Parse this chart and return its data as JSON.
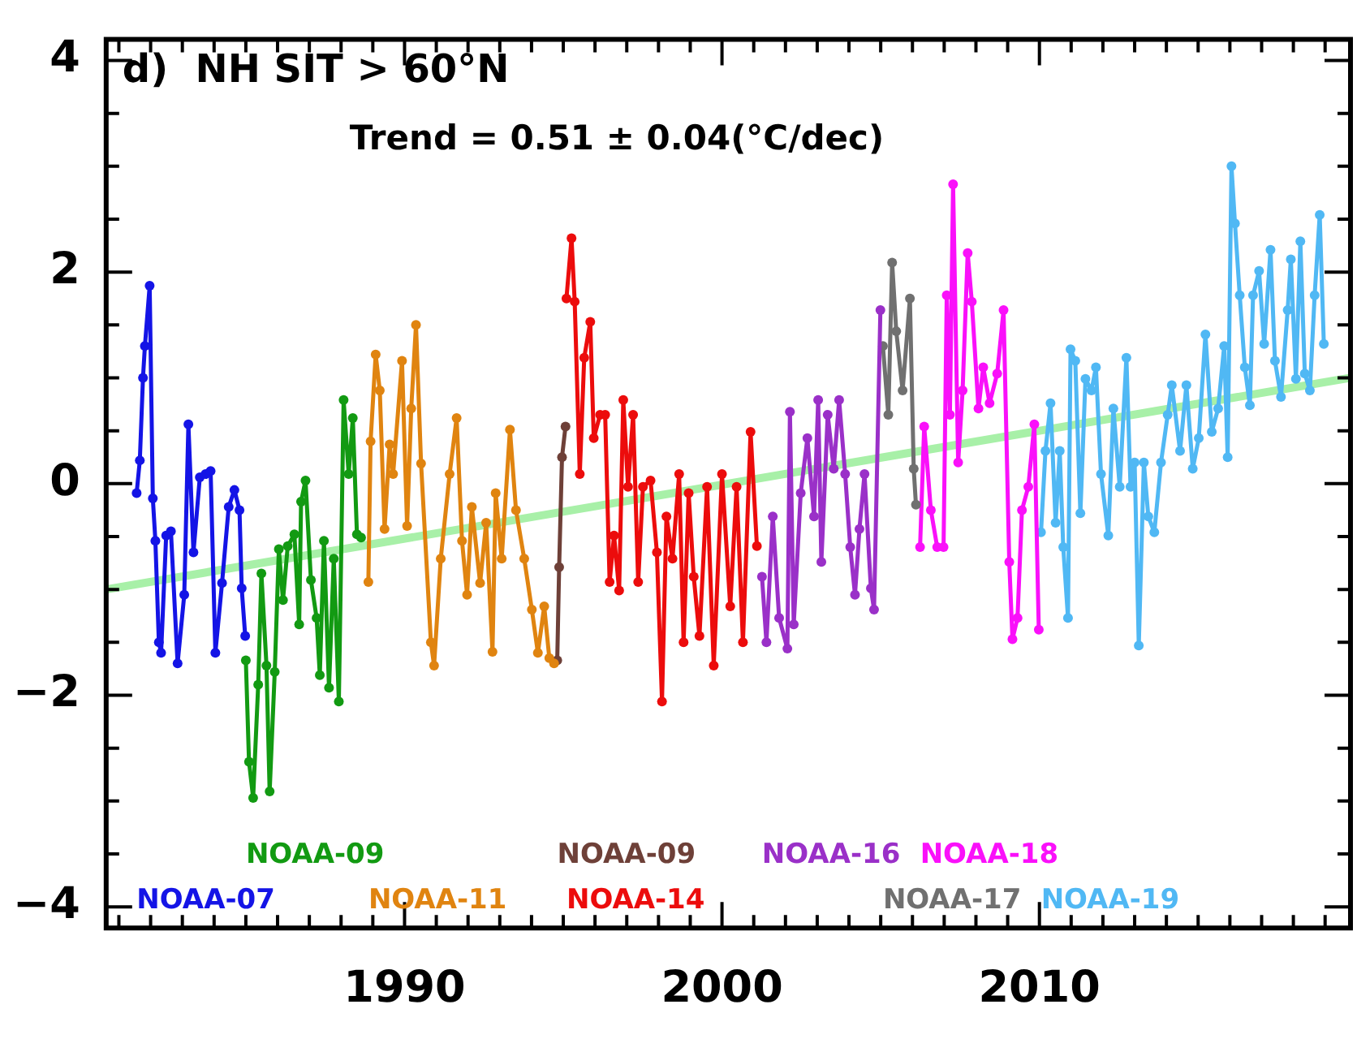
{
  "chart_data": {
    "type": "line",
    "title": "d)  NH SIT > 60°N",
    "annotations": [
      "Trend = 0.51 ± 0.04(°C/dec)"
    ],
    "marker": "circle",
    "xlim": [
      1980.6,
      2019.8
    ],
    "xticks": [
      {
        "value": 1981,
        "label": null
      },
      {
        "value": 1982,
        "label": null
      },
      {
        "value": 1983,
        "label": null
      },
      {
        "value": 1984,
        "label": null
      },
      {
        "value": 1985,
        "label": null
      },
      {
        "value": 1986,
        "label": null
      },
      {
        "value": 1987,
        "label": null
      },
      {
        "value": 1988,
        "label": null
      },
      {
        "value": 1989,
        "label": null
      },
      1990,
      {
        "value": 1991,
        "label": null
      },
      {
        "value": 1992,
        "label": null
      },
      {
        "value": 1993,
        "label": null
      },
      {
        "value": 1994,
        "label": null
      },
      {
        "value": 1995,
        "label": null
      },
      {
        "value": 1996,
        "label": null
      },
      {
        "value": 1997,
        "label": null
      },
      {
        "value": 1998,
        "label": null
      },
      {
        "value": 1999,
        "label": null
      },
      2000,
      {
        "value": 2001,
        "label": null
      },
      {
        "value": 2002,
        "label": null
      },
      {
        "value": 2003,
        "label": null
      },
      {
        "value": 2004,
        "label": null
      },
      {
        "value": 2005,
        "label": null
      },
      {
        "value": 2006,
        "label": null
      },
      {
        "value": 2007,
        "label": null
      },
      {
        "value": 2008,
        "label": null
      },
      {
        "value": 2009,
        "label": null
      },
      2010,
      {
        "value": 2011,
        "label": null
      },
      {
        "value": 2012,
        "label": null
      },
      {
        "value": 2013,
        "label": null
      },
      {
        "value": 2014,
        "label": null
      },
      {
        "value": 2015,
        "label": null
      },
      {
        "value": 2016,
        "label": null
      },
      {
        "value": 2017,
        "label": null
      },
      {
        "value": 2018,
        "label": null
      },
      {
        "value": 2019,
        "label": null
      }
    ],
    "ylim": [
      -4.2,
      4.2
    ],
    "yticks": [
      -4,
      {
        "value": -3.5,
        "label": null
      },
      {
        "value": -3,
        "label": null
      },
      {
        "value": -2.5,
        "label": null
      },
      -2,
      {
        "value": -1.5,
        "label": null
      },
      {
        "value": -1,
        "label": null
      },
      {
        "value": -0.5,
        "label": null
      },
      0,
      {
        "value": 0.5,
        "label": null
      },
      {
        "value": 1,
        "label": null
      },
      {
        "value": 1.5,
        "label": null
      },
      2,
      {
        "value": 2.5,
        "label": null
      },
      {
        "value": 3,
        "label": null
      },
      {
        "value": 3.5,
        "label": null
      },
      4
    ],
    "series": [
      {
        "name": "NOAA-07",
        "color": "#1414e6",
        "x": [
          1981.56,
          1981.66,
          1981.76,
          1981.82,
          1981.97,
          1982.07,
          1982.15,
          1982.26,
          1982.33,
          1982.49,
          1982.64,
          1982.85,
          1983.06,
          1983.19,
          1983.35,
          1983.55,
          1983.73,
          1983.89,
          1984.04,
          1984.25,
          1984.46,
          1984.64,
          1984.8,
          1984.87,
          1984.98
        ],
        "values": [
          -0.09,
          0.22,
          1.0,
          1.3,
          1.87,
          -0.14,
          -0.54,
          -1.5,
          -1.6,
          -0.49,
          -0.45,
          -1.7,
          -1.05,
          0.56,
          -0.65,
          0.06,
          0.09,
          0.12,
          -1.6,
          -0.94,
          -0.22,
          -0.06,
          -0.25,
          -0.99,
          -1.44
        ]
      },
      {
        "name": "NOAA-09",
        "color": "#129a12",
        "x": [
          1985.0,
          1985.1,
          1985.23,
          1985.39,
          1985.49,
          1985.65,
          1985.75,
          1985.91,
          1986.04,
          1986.17,
          1986.32,
          1986.53,
          1986.68,
          1986.74,
          1986.88,
          1987.05,
          1987.23,
          1987.33,
          1987.46,
          1987.62,
          1987.77,
          1987.93,
          1988.08,
          1988.24,
          1988.37,
          1988.5,
          1988.63
        ],
        "values": [
          -1.67,
          -2.63,
          -2.97,
          -1.9,
          -0.85,
          -1.72,
          -2.91,
          -1.78,
          -0.62,
          -1.1,
          -0.59,
          -0.48,
          -1.33,
          -0.17,
          0.03,
          -0.91,
          -1.27,
          -1.81,
          -0.54,
          -1.93,
          -0.71,
          -2.06,
          0.79,
          0.09,
          0.62,
          -0.48,
          -0.51
        ]
      },
      {
        "name": "NOAA-11",
        "color": "#e08410",
        "x": [
          1988.86,
          1988.93,
          1989.09,
          1989.22,
          1989.37,
          1989.53,
          1989.64,
          1989.92,
          1990.08,
          1990.21,
          1990.36,
          1990.52,
          1990.83,
          1990.93,
          1991.14,
          1991.42,
          1991.64,
          1991.81,
          1991.97,
          1992.12,
          1992.38,
          1992.57,
          1992.77,
          1992.87,
          1993.06,
          1993.32,
          1993.51,
          1993.77,
          1994.01,
          1994.2,
          1994.4,
          1994.56,
          1994.71
        ],
        "values": [
          -0.93,
          0.4,
          1.22,
          0.88,
          -0.43,
          0.37,
          0.09,
          1.16,
          -0.4,
          0.71,
          1.5,
          0.19,
          -1.5,
          -1.72,
          -0.71,
          0.09,
          0.62,
          -0.54,
          -1.05,
          -0.22,
          -0.94,
          -0.37,
          -1.59,
          -0.09,
          -0.71,
          0.51,
          -0.25,
          -0.71,
          -1.19,
          -1.6,
          -1.16,
          -1.65,
          -1.7
        ]
      },
      {
        "name": "NOAA-09",
        "color": "#6e4038",
        "x": [
          1994.81,
          1994.87,
          1994.96,
          1995.07
        ],
        "values": [
          -1.67,
          -0.79,
          0.25,
          0.54
        ]
      },
      {
        "name": "NOAA-14",
        "color": "#ec0c0c",
        "x": [
          1995.1,
          1995.26,
          1995.36,
          1995.52,
          1995.66,
          1995.85,
          1995.96,
          1996.16,
          1996.32,
          1996.46,
          1996.6,
          1996.76,
          1996.89,
          1997.04,
          1997.2,
          1997.36,
          1997.51,
          1997.75,
          1997.95,
          1998.11,
          1998.25,
          1998.44,
          1998.65,
          1998.79,
          1998.95,
          1999.11,
          1999.29,
          1999.53,
          1999.74,
          2000.0,
          2000.26,
          2000.46,
          2000.66,
          2000.9,
          2001.1
        ],
        "values": [
          1.75,
          2.32,
          1.72,
          0.09,
          1.19,
          1.53,
          0.43,
          0.65,
          0.65,
          -0.93,
          -0.49,
          -1.01,
          0.79,
          -0.03,
          0.65,
          -0.93,
          -0.03,
          0.03,
          -0.65,
          -2.06,
          -0.31,
          -0.71,
          0.09,
          -1.5,
          -0.09,
          -0.88,
          -1.44,
          -0.03,
          -1.72,
          0.09,
          -1.16,
          -0.03,
          -1.5,
          0.49,
          -0.59
        ]
      },
      {
        "name": "NOAA-16",
        "color": "#9a30c8",
        "x": [
          2001.26,
          2001.4,
          2001.6,
          2001.8,
          2002.06,
          2002.14,
          2002.26,
          2002.48,
          2002.69,
          2002.9,
          2003.03,
          2003.13,
          2003.33,
          2003.52,
          2003.69,
          2003.88,
          2004.04,
          2004.19,
          2004.33,
          2004.49,
          2004.69,
          2004.79,
          2004.99
        ],
        "values": [
          -0.88,
          -1.5,
          -0.31,
          -1.27,
          -1.56,
          0.68,
          -1.33,
          -0.09,
          0.43,
          -0.31,
          0.79,
          -0.74,
          0.65,
          0.14,
          0.79,
          0.09,
          -0.6,
          -1.05,
          -0.43,
          0.09,
          -0.99,
          -1.19,
          1.64
        ]
      },
      {
        "name": "NOAA-17",
        "color": "#707070",
        "x": [
          2005.07,
          2005.24,
          2005.36,
          2005.49,
          2005.69,
          2005.92,
          2006.04,
          2006.11
        ],
        "values": [
          1.3,
          0.65,
          2.09,
          1.44,
          0.88,
          1.75,
          0.14,
          -0.2
        ]
      },
      {
        "name": "NOAA-18",
        "color": "#fa10fa",
        "x": [
          2006.24,
          2006.37,
          2006.58,
          2006.78,
          2006.98,
          2007.08,
          2007.18,
          2007.28,
          2007.44,
          2007.58,
          2007.74,
          2007.87,
          2008.08,
          2008.23,
          2008.43,
          2008.67,
          2008.87,
          2009.05,
          2009.15,
          2009.31,
          2009.45,
          2009.65,
          2009.84,
          2009.98
        ],
        "values": [
          -0.6,
          0.54,
          -0.25,
          -0.6,
          -0.6,
          1.78,
          0.65,
          2.83,
          0.2,
          0.88,
          2.18,
          1.72,
          0.71,
          1.1,
          0.76,
          1.04,
          1.64,
          -0.74,
          -1.47,
          -1.27,
          -0.25,
          -0.03,
          0.56,
          -1.38
        ]
      },
      {
        "name": "NOAA-19",
        "color": "#50b8f4",
        "x": [
          2010.05,
          2010.19,
          2010.35,
          2010.51,
          2010.64,
          2010.75,
          2010.9,
          2010.98,
          2011.13,
          2011.29,
          2011.45,
          2011.64,
          2011.78,
          2011.94,
          2012.17,
          2012.33,
          2012.53,
          2012.74,
          2012.87,
          2013.0,
          2013.13,
          2013.29,
          2013.43,
          2013.62,
          2013.83,
          2014.04,
          2014.17,
          2014.43,
          2014.63,
          2014.83,
          2015.02,
          2015.23,
          2015.43,
          2015.63,
          2015.82,
          2015.93,
          2016.05,
          2016.16,
          2016.31,
          2016.47,
          2016.63,
          2016.73,
          2016.92,
          2017.08,
          2017.28,
          2017.42,
          2017.61,
          2017.82,
          2017.92,
          2018.08,
          2018.22,
          2018.36,
          2018.52,
          2018.67,
          2018.83,
          2018.96
        ],
        "values": [
          -0.46,
          0.31,
          0.76,
          -0.37,
          0.31,
          -0.6,
          -1.27,
          1.27,
          1.16,
          -0.28,
          0.99,
          0.88,
          1.1,
          0.09,
          -0.49,
          0.71,
          -0.03,
          1.19,
          -0.03,
          0.2,
          -1.53,
          0.2,
          -0.31,
          -0.46,
          0.2,
          0.65,
          0.93,
          0.31,
          0.93,
          0.14,
          0.43,
          1.41,
          0.49,
          0.71,
          1.3,
          0.25,
          3.0,
          2.46,
          1.78,
          1.1,
          0.74,
          1.78,
          2.01,
          1.32,
          2.21,
          1.16,
          0.82,
          1.64,
          2.12,
          0.99,
          2.29,
          1.04,
          0.88,
          1.78,
          2.54,
          1.32
        ]
      },
      {
        "type": "line",
        "marker": "none",
        "color": "#a8f0a8",
        "x": [
          1980.6,
          2019.8
        ],
        "values": [
          -1.0,
          1.0
        ]
      }
    ]
  }
}
